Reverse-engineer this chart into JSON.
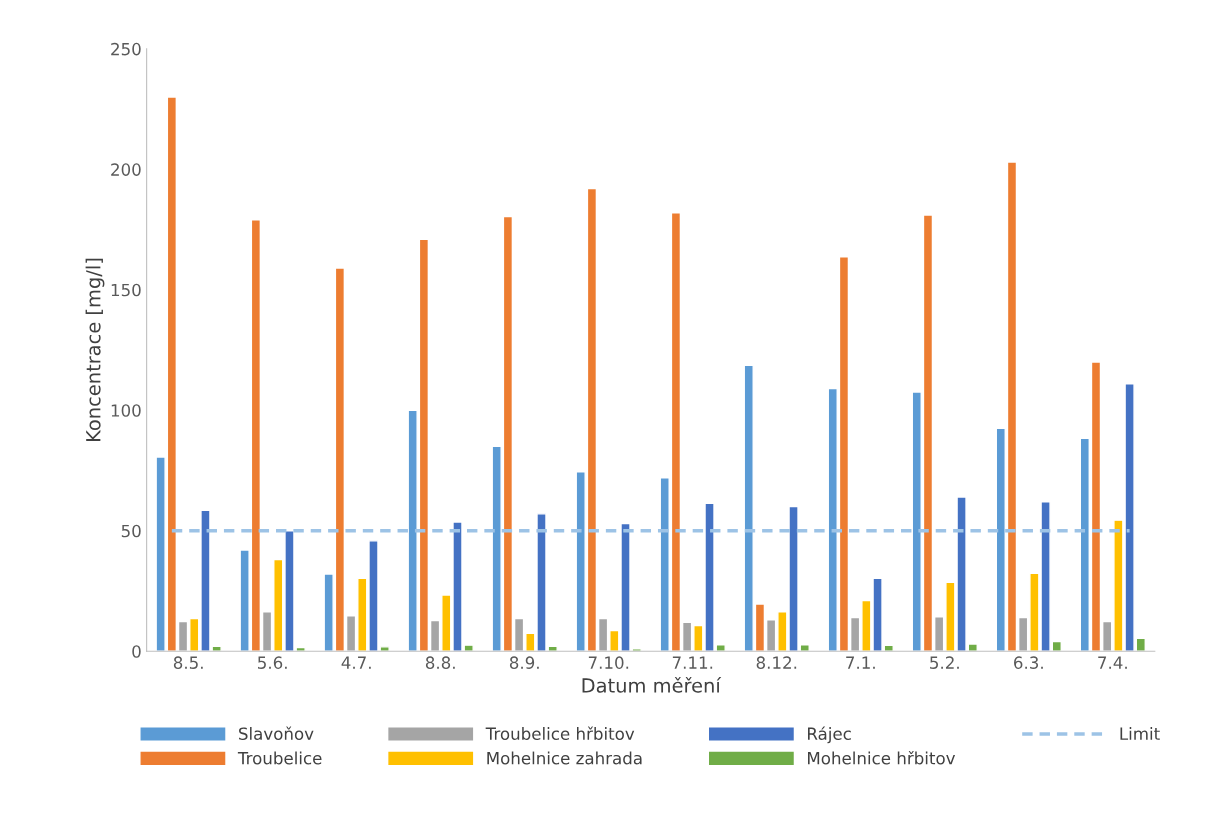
{
  "chart_data": {
    "type": "bar",
    "xlabel": "Datum měření",
    "ylabel": "Koncentrace [mg/l]",
    "categories": [
      "8.5.",
      "5.6.",
      "4.7.",
      "8.8.",
      "8.9.",
      "7.10.",
      "7.11.",
      "8.12.",
      "7.1.",
      "5.2.",
      "6.3.",
      "7.4."
    ],
    "series": [
      {
        "name": "Slavoňov",
        "color": "#5b9bd5",
        "values": [
          80.6,
          42,
          32,
          100,
          85,
          74.5,
          72,
          118.7,
          109,
          107.6,
          92.5,
          88.4
        ]
      },
      {
        "name": "Troubelice",
        "color": "#ed7d31",
        "values": [
          230,
          179,
          159,
          171,
          180.4,
          192,
          182,
          19.6,
          163.7,
          181,
          203,
          120
        ]
      },
      {
        "name": "Troubelice hřbitov",
        "color": "#a5a5a5",
        "values": [
          12.3,
          16.4,
          14.7,
          12.7,
          13.5,
          13.5,
          12,
          13,
          14,
          14.3,
          14,
          12.3
        ]
      },
      {
        "name": "Mohelnice zahrada",
        "color": "#ffc000",
        "values": [
          13.5,
          38,
          30.3,
          23.3,
          7.4,
          8.6,
          10.6,
          16.4,
          21,
          28.6,
          32.3,
          54.4
        ]
      },
      {
        "name": "Rájec",
        "color": "#4472c4",
        "values": [
          58.5,
          50,
          45.8,
          53.6,
          57,
          53,
          61.4,
          60,
          30.3,
          64,
          62,
          111
        ]
      },
      {
        "name": "Mohelnice hřbitov",
        "color": "#70ad47",
        "values": [
          2,
          1.5,
          1.8,
          2.5,
          2,
          1,
          2.7,
          2.7,
          2.4,
          3,
          4,
          5.3
        ]
      }
    ],
    "ref_lines": [
      {
        "axis": "y",
        "value": 50,
        "label": "Limit",
        "color": "#9dc3e6",
        "line_style": "dashed"
      }
    ],
    "ylim": [
      0,
      250
    ],
    "yticks": [
      0,
      50,
      100,
      150,
      200,
      250
    ],
    "grid": false,
    "legend": "bottom"
  }
}
